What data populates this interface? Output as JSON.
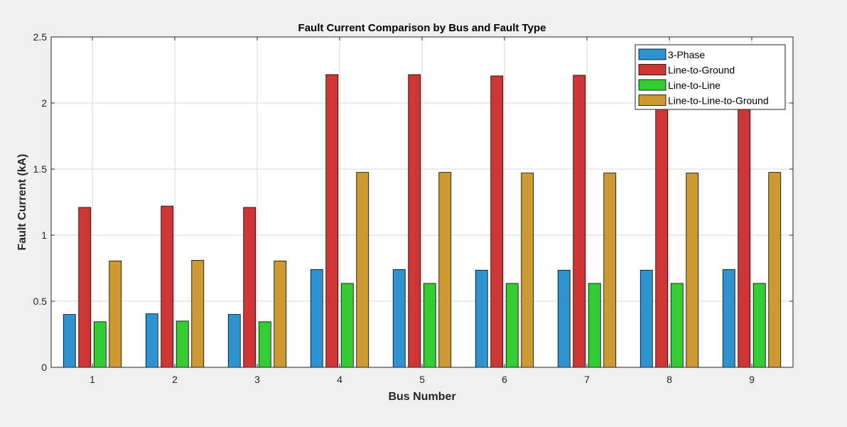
{
  "chart_data": {
    "type": "bar",
    "title": "Fault Current Comparison by Bus and Fault Type",
    "xlabel": "Bus Number",
    "ylabel": "Fault Current (kA)",
    "categories": [
      "1",
      "2",
      "3",
      "4",
      "5",
      "6",
      "7",
      "8",
      "9"
    ],
    "ylim": [
      0,
      2.5
    ],
    "yticks": [
      0,
      0.5,
      1,
      1.5,
      2,
      2.5
    ],
    "ytick_labels": [
      "0",
      "0.5",
      "1",
      "1.5",
      "2",
      "2.5"
    ],
    "grid": true,
    "legend_position": "top-right",
    "series": [
      {
        "name": "3-Phase",
        "color": "#2f93d0",
        "values": [
          0.4,
          0.405,
          0.4,
          0.74,
          0.74,
          0.735,
          0.735,
          0.735,
          0.74
        ]
      },
      {
        "name": "Line-to-Ground",
        "color": "#d03535",
        "values": [
          1.21,
          1.22,
          1.21,
          2.215,
          2.215,
          2.205,
          2.21,
          2.2,
          2.21
        ]
      },
      {
        "name": "Line-to-Line",
        "color": "#33cc33",
        "values": [
          0.345,
          0.35,
          0.345,
          0.635,
          0.635,
          0.635,
          0.635,
          0.635,
          0.635
        ]
      },
      {
        "name": "Line-to-Line-to-Ground",
        "color": "#cc9933",
        "values": [
          0.805,
          0.81,
          0.805,
          1.475,
          1.475,
          1.47,
          1.47,
          1.47,
          1.475
        ]
      }
    ]
  }
}
